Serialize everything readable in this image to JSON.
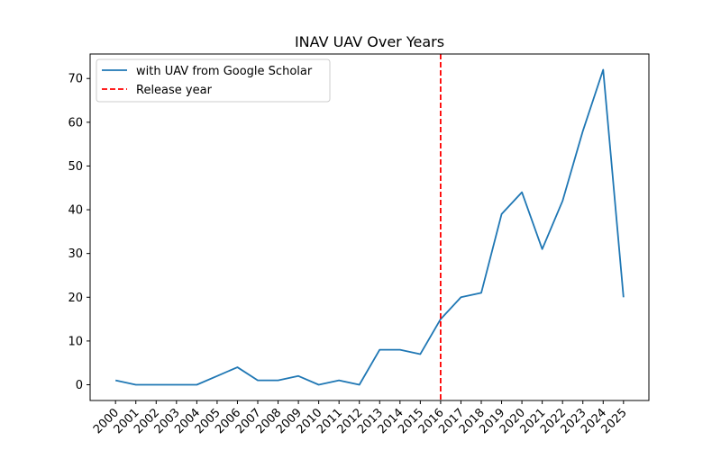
{
  "chart_data": {
    "type": "line",
    "title": "INAV UAV Over Years",
    "xlabel": "",
    "ylabel": "",
    "x": [
      2000,
      2001,
      2002,
      2003,
      2004,
      2005,
      2006,
      2007,
      2008,
      2009,
      2010,
      2011,
      2012,
      2013,
      2014,
      2015,
      2016,
      2017,
      2018,
      2019,
      2020,
      2021,
      2022,
      2023,
      2024,
      2025
    ],
    "x_tick_labels": [
      "2000",
      "2001",
      "2002",
      "2003",
      "2004",
      "2005",
      "2006",
      "2007",
      "2008",
      "2009",
      "2010",
      "2011",
      "2012",
      "2013",
      "2014",
      "2015",
      "2016",
      "2017",
      "2018",
      "2019",
      "2020",
      "2021",
      "2022",
      "2023",
      "2024",
      "2025"
    ],
    "series": [
      {
        "name": "with UAV from Google Scholar",
        "color": "#1f77b4",
        "values": [
          1,
          0,
          0,
          0,
          0,
          2,
          4,
          1,
          1,
          2,
          0,
          1,
          0,
          8,
          8,
          7,
          15,
          20,
          21,
          39,
          44,
          31,
          42,
          58,
          72,
          20
        ]
      }
    ],
    "reference_line": {
      "name": "Release year",
      "x": 2016,
      "color": "#ff0000",
      "style": "dashed"
    },
    "ylim": [
      -3.6,
      75.6
    ],
    "y_ticks": [
      0,
      10,
      20,
      30,
      40,
      50,
      60,
      70
    ],
    "y_tick_labels": [
      "0",
      "10",
      "20",
      "30",
      "40",
      "50",
      "60",
      "70"
    ],
    "grid": false,
    "legend_position": "top-left"
  }
}
